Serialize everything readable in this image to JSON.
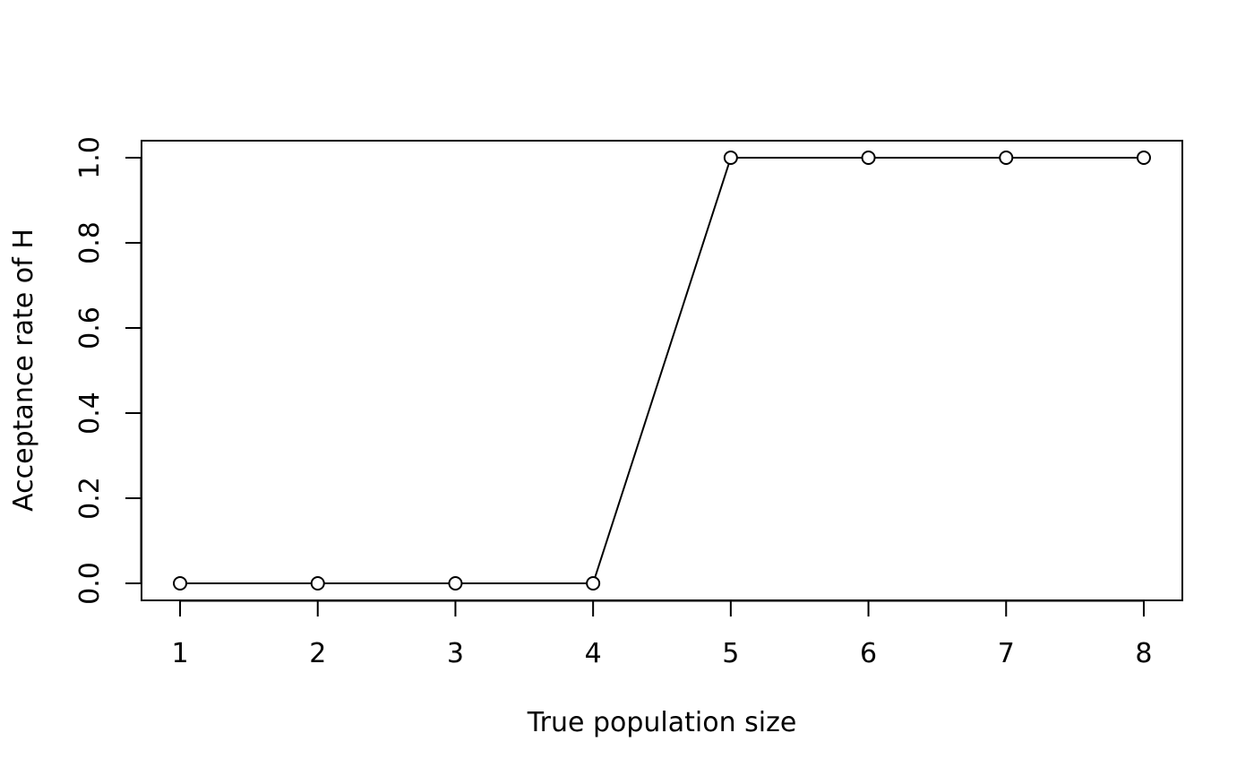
{
  "chart_data": {
    "type": "line",
    "title": "",
    "xlabel": "True population size",
    "ylabel": "Acceptance rate of H",
    "x": [
      1,
      2,
      3,
      4,
      5,
      6,
      7,
      8
    ],
    "series": [
      {
        "values": [
          0,
          0,
          0,
          0,
          1,
          1,
          1,
          1
        ]
      }
    ],
    "xlim": [
      0.72,
      8.28
    ],
    "ylim": [
      -0.04,
      1.04
    ],
    "xticks": [
      1,
      2,
      3,
      4,
      5,
      6,
      7,
      8
    ],
    "yticks": [
      0.0,
      0.2,
      0.4,
      0.6,
      0.8,
      1.0
    ],
    "ytick_labels": [
      "0.0",
      "0.2",
      "0.4",
      "0.6",
      "0.8",
      "1.0"
    ],
    "grid": false,
    "marker": "open-circle",
    "line_color": "#000000"
  }
}
